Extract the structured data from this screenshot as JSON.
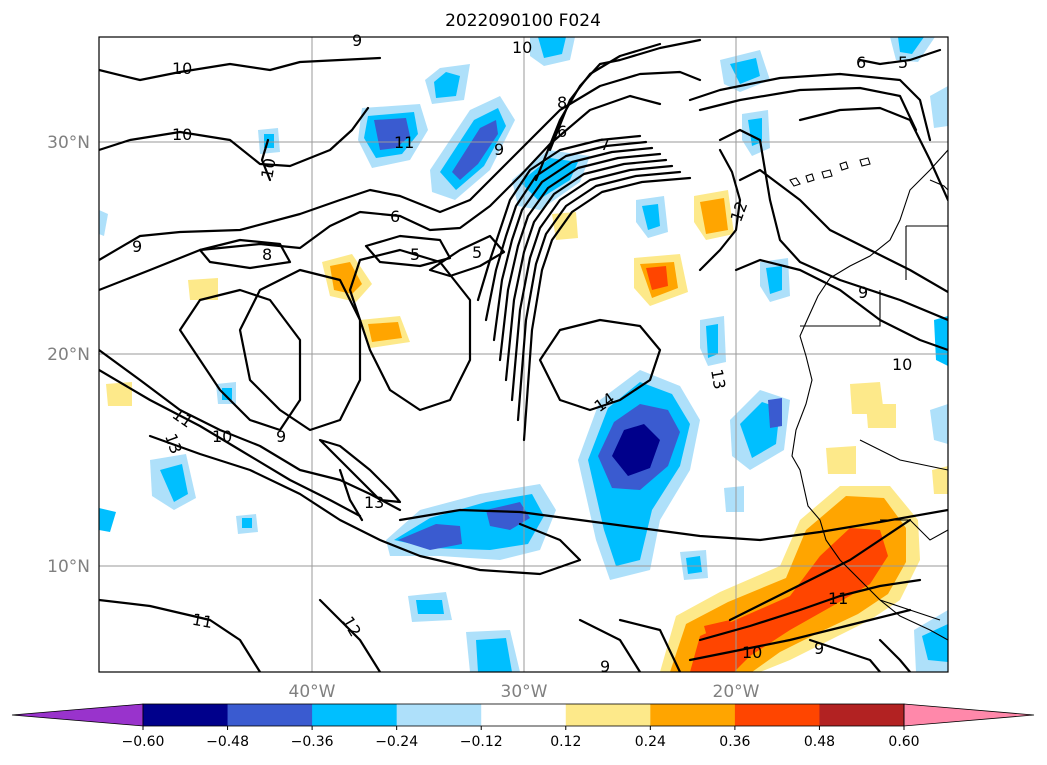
{
  "title": "2022090100 F024",
  "axes": {
    "lat_labels": [
      "30°N",
      "20°N",
      "10°N"
    ],
    "lon_labels": [
      "40°W",
      "30°W",
      "20°W"
    ],
    "extent": {
      "lon_min": -50,
      "lon_max": -10,
      "lat_min": 5,
      "lat_max": 35
    }
  },
  "colorbar": {
    "ticks": [
      "−0.60",
      "−0.48",
      "−0.36",
      "−0.24",
      "−0.12",
      "0.12",
      "0.24",
      "0.36",
      "0.48",
      "0.60"
    ],
    "colors": [
      "#9933cc",
      "#00008b",
      "#3a5bd0",
      "#00bfff",
      "#aee0fa",
      "#ffffff",
      "#fde98a",
      "#ffa500",
      "#ff4500",
      "#b22222",
      "#ff88aa"
    ],
    "extend": "both"
  },
  "contour_labels": [
    {
      "text": "9"
    },
    {
      "text": "10"
    },
    {
      "text": "10"
    },
    {
      "text": "10"
    },
    {
      "text": "10"
    },
    {
      "text": "11"
    },
    {
      "text": "9"
    },
    {
      "text": "8"
    },
    {
      "text": "6"
    },
    {
      "text": "7"
    },
    {
      "text": "6"
    },
    {
      "text": "5"
    },
    {
      "text": "9"
    },
    {
      "text": "8"
    },
    {
      "text": "6"
    },
    {
      "text": "5"
    },
    {
      "text": "5"
    },
    {
      "text": "12"
    },
    {
      "text": "9"
    },
    {
      "text": "10"
    },
    {
      "text": "13"
    },
    {
      "text": "14"
    },
    {
      "text": "11"
    },
    {
      "text": "10"
    },
    {
      "text": "9"
    },
    {
      "text": "13"
    },
    {
      "text": "13"
    },
    {
      "text": "11"
    },
    {
      "text": "12"
    },
    {
      "text": "11"
    },
    {
      "text": "10"
    },
    {
      "text": "9"
    },
    {
      "text": "9"
    }
  ]
}
